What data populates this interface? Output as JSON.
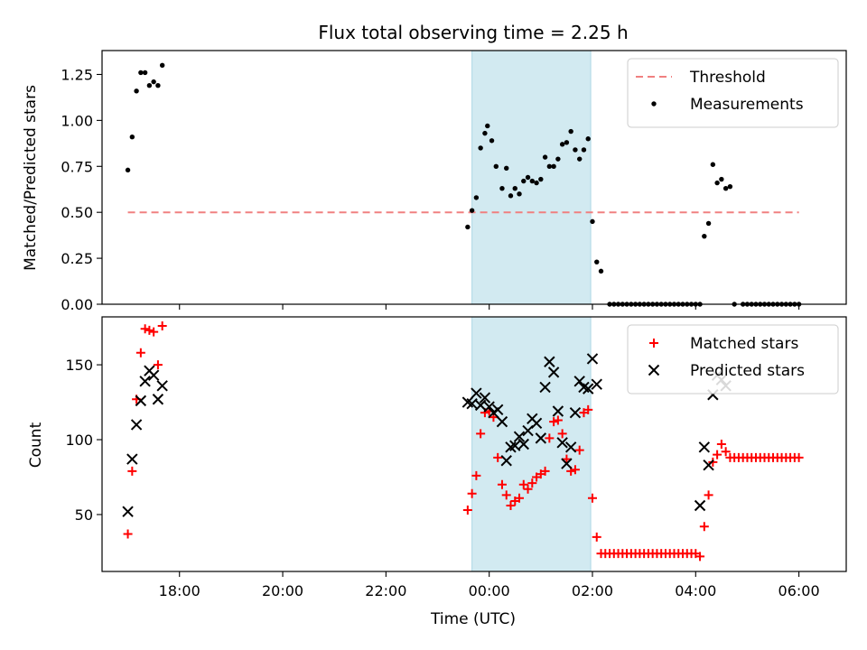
{
  "figure": {
    "title": "Flux total observing time = 2.25 h"
  },
  "colors": {
    "threshold": "#f08080",
    "measurement": "#000000",
    "matched": "#ff0000",
    "predicted": "#000000",
    "highlight": "#add8e6"
  },
  "chart_data": [
    {
      "type": "scatter",
      "name_in_figure": "top",
      "ylabel": "Matched/Predicted stars",
      "xlim": [
        "16:30",
        "06:55"
      ],
      "ylim": [
        0,
        1.38
      ],
      "y_ticks": [
        "0.00",
        "0.25",
        "0.50",
        "0.75",
        "1.00",
        "1.25"
      ],
      "x_tick_labels_visible": false,
      "highlight_span": [
        "23:40",
        "01:58"
      ],
      "legend": {
        "position": "top-right",
        "entries": [
          "Threshold",
          "Measurements"
        ]
      },
      "threshold": {
        "name": "Threshold",
        "y": 0.5,
        "x_range": [
          "17:00",
          "06:00"
        ],
        "style": "dashed"
      },
      "series": [
        {
          "name": "Measurements",
          "marker": "dot",
          "points": [
            [
              "17:00",
              0.73
            ],
            [
              "17:05",
              0.91
            ],
            [
              "17:10",
              1.16
            ],
            [
              "17:15",
              1.26
            ],
            [
              "17:20",
              1.26
            ],
            [
              "17:25",
              1.19
            ],
            [
              "17:30",
              1.21
            ],
            [
              "17:35",
              1.19
            ],
            [
              "17:40",
              1.3
            ],
            [
              "23:35",
              0.42
            ],
            [
              "23:40",
              0.51
            ],
            [
              "23:45",
              0.58
            ],
            [
              "23:50",
              0.85
            ],
            [
              "23:55",
              0.93
            ],
            [
              "23:58",
              0.97
            ],
            [
              "00:03",
              0.89
            ],
            [
              "00:08",
              0.75
            ],
            [
              "00:15",
              0.63
            ],
            [
              "00:20",
              0.74
            ],
            [
              "00:25",
              0.59
            ],
            [
              "00:30",
              0.63
            ],
            [
              "00:35",
              0.6
            ],
            [
              "00:40",
              0.67
            ],
            [
              "00:45",
              0.69
            ],
            [
              "00:50",
              0.67
            ],
            [
              "00:55",
              0.66
            ],
            [
              "01:00",
              0.68
            ],
            [
              "01:05",
              0.8
            ],
            [
              "01:10",
              0.75
            ],
            [
              "01:15",
              0.75
            ],
            [
              "01:20",
              0.79
            ],
            [
              "01:25",
              0.87
            ],
            [
              "01:30",
              0.88
            ],
            [
              "01:35",
              0.94
            ],
            [
              "01:40",
              0.84
            ],
            [
              "01:45",
              0.79
            ],
            [
              "01:50",
              0.84
            ],
            [
              "01:55",
              0.9
            ],
            [
              "02:00",
              0.45
            ],
            [
              "02:05",
              0.23
            ],
            [
              "02:10",
              0.18
            ],
            [
              "02:20",
              0.0
            ],
            [
              "02:25",
              0.0
            ],
            [
              "02:30",
              0.0
            ],
            [
              "02:35",
              0.0
            ],
            [
              "02:40",
              0.0
            ],
            [
              "02:45",
              0.0
            ],
            [
              "02:50",
              0.0
            ],
            [
              "02:55",
              0.0
            ],
            [
              "03:00",
              0.0
            ],
            [
              "03:05",
              0.0
            ],
            [
              "03:10",
              0.0
            ],
            [
              "03:15",
              0.0
            ],
            [
              "03:20",
              0.0
            ],
            [
              "03:25",
              0.0
            ],
            [
              "03:30",
              0.0
            ],
            [
              "03:35",
              0.0
            ],
            [
              "03:40",
              0.0
            ],
            [
              "03:45",
              0.0
            ],
            [
              "03:50",
              0.0
            ],
            [
              "03:55",
              0.0
            ],
            [
              "04:00",
              0.0
            ],
            [
              "04:05",
              0.0
            ],
            [
              "04:10",
              0.37
            ],
            [
              "04:15",
              0.44
            ],
            [
              "04:20",
              0.76
            ],
            [
              "04:25",
              0.66
            ],
            [
              "04:30",
              0.68
            ],
            [
              "04:35",
              0.63
            ],
            [
              "04:40",
              0.64
            ],
            [
              "04:45",
              0.0
            ],
            [
              "04:55",
              0.0
            ],
            [
              "05:00",
              0.0
            ],
            [
              "05:05",
              0.0
            ],
            [
              "05:10",
              0.0
            ],
            [
              "05:15",
              0.0
            ],
            [
              "05:20",
              0.0
            ],
            [
              "05:25",
              0.0
            ],
            [
              "05:30",
              0.0
            ],
            [
              "05:35",
              0.0
            ],
            [
              "05:40",
              0.0
            ],
            [
              "05:45",
              0.0
            ],
            [
              "05:50",
              0.0
            ],
            [
              "05:55",
              0.0
            ],
            [
              "06:00",
              0.0
            ]
          ]
        }
      ]
    },
    {
      "type": "scatter",
      "name_in_figure": "bottom",
      "xlabel": "Time (UTC)",
      "ylabel": "Count",
      "xlim": [
        "16:30",
        "06:55"
      ],
      "ylim": [
        12,
        182
      ],
      "y_ticks": [
        "50",
        "100",
        "150"
      ],
      "x_ticks": [
        "18:00",
        "20:00",
        "22:00",
        "00:00",
        "02:00",
        "04:00",
        "06:00"
      ],
      "highlight_span": [
        "23:40",
        "01:58"
      ],
      "legend": {
        "position": "top-right",
        "entries": [
          "Matched stars",
          "Predicted stars"
        ]
      },
      "series": [
        {
          "name": "Matched stars",
          "marker": "plus",
          "points": [
            [
              "17:00",
              37
            ],
            [
              "17:05",
              79
            ],
            [
              "17:10",
              127
            ],
            [
              "17:15",
              158
            ],
            [
              "17:20",
              174
            ],
            [
              "17:25",
              173
            ],
            [
              "17:30",
              172
            ],
            [
              "17:35",
              150
            ],
            [
              "17:40",
              176
            ],
            [
              "23:35",
              53
            ],
            [
              "23:40",
              64
            ],
            [
              "23:45",
              76
            ],
            [
              "23:50",
              104
            ],
            [
              "23:55",
              118
            ],
            [
              "24:00",
              119
            ],
            [
              "00:05",
              115
            ],
            [
              "00:10",
              88
            ],
            [
              "00:15",
              70
            ],
            [
              "00:20",
              63
            ],
            [
              "00:25",
              56
            ],
            [
              "00:30",
              59
            ],
            [
              "00:35",
              61
            ],
            [
              "00:40",
              70
            ],
            [
              "00:45",
              67
            ],
            [
              "00:50",
              71
            ],
            [
              "00:55",
              75
            ],
            [
              "01:00",
              77
            ],
            [
              "01:05",
              79
            ],
            [
              "01:10",
              101
            ],
            [
              "01:15",
              112
            ],
            [
              "01:20",
              113
            ],
            [
              "01:25",
              104
            ],
            [
              "01:30",
              87
            ],
            [
              "01:35",
              79
            ],
            [
              "01:40",
              80
            ],
            [
              "01:45",
              93
            ],
            [
              "01:50",
              118
            ],
            [
              "01:55",
              120
            ],
            [
              "02:00",
              61
            ],
            [
              "02:05",
              35
            ],
            [
              "02:10",
              24
            ],
            [
              "02:15",
              24
            ],
            [
              "02:20",
              24
            ],
            [
              "02:25",
              24
            ],
            [
              "02:30",
              24
            ],
            [
              "02:35",
              24
            ],
            [
              "02:40",
              24
            ],
            [
              "02:45",
              24
            ],
            [
              "02:50",
              24
            ],
            [
              "02:55",
              24
            ],
            [
              "03:00",
              24
            ],
            [
              "03:05",
              24
            ],
            [
              "03:10",
              24
            ],
            [
              "03:15",
              24
            ],
            [
              "03:20",
              24
            ],
            [
              "03:25",
              24
            ],
            [
              "03:30",
              24
            ],
            [
              "03:35",
              24
            ],
            [
              "03:40",
              24
            ],
            [
              "03:45",
              24
            ],
            [
              "03:50",
              24
            ],
            [
              "03:55",
              24
            ],
            [
              "04:00",
              24
            ],
            [
              "04:05",
              22
            ],
            [
              "04:10",
              42
            ],
            [
              "04:15",
              63
            ],
            [
              "04:20",
              85
            ],
            [
              "04:25",
              90
            ],
            [
              "04:30",
              97
            ],
            [
              "04:35",
              92
            ],
            [
              "04:40",
              88
            ],
            [
              "04:45",
              88
            ],
            [
              "04:50",
              88
            ],
            [
              "04:55",
              88
            ],
            [
              "05:00",
              88
            ],
            [
              "05:05",
              88
            ],
            [
              "05:10",
              88
            ],
            [
              "05:15",
              88
            ],
            [
              "05:20",
              88
            ],
            [
              "05:25",
              88
            ],
            [
              "05:30",
              88
            ],
            [
              "05:35",
              88
            ],
            [
              "05:40",
              88
            ],
            [
              "05:45",
              88
            ],
            [
              "05:50",
              88
            ],
            [
              "05:55",
              88
            ],
            [
              "06:00",
              88
            ]
          ]
        },
        {
          "name": "Predicted stars",
          "marker": "x",
          "points": [
            [
              "17:00",
              52
            ],
            [
              "17:05",
              87
            ],
            [
              "17:10",
              110
            ],
            [
              "17:15",
              126
            ],
            [
              "17:20",
              139
            ],
            [
              "17:25",
              146
            ],
            [
              "17:30",
              143
            ],
            [
              "17:35",
              127
            ],
            [
              "17:40",
              136
            ],
            [
              "23:35",
              125
            ],
            [
              "23:40",
              124
            ],
            [
              "23:45",
              131
            ],
            [
              "23:50",
              123
            ],
            [
              "23:55",
              128
            ],
            [
              "24:00",
              122
            ],
            [
              "00:05",
              118
            ],
            [
              "00:10",
              120
            ],
            [
              "00:15",
              112
            ],
            [
              "00:20",
              86
            ],
            [
              "00:25",
              95
            ],
            [
              "00:30",
              96
            ],
            [
              "00:35",
              102
            ],
            [
              "00:40",
              97
            ],
            [
              "00:45",
              106
            ],
            [
              "00:50",
              114
            ],
            [
              "00:55",
              111
            ],
            [
              "01:00",
              101
            ],
            [
              "01:05",
              135
            ],
            [
              "01:10",
              152
            ],
            [
              "01:15",
              145
            ],
            [
              "01:20",
              119
            ],
            [
              "01:25",
              98
            ],
            [
              "01:30",
              84
            ],
            [
              "01:35",
              95
            ],
            [
              "01:40",
              118
            ],
            [
              "01:45",
              139
            ],
            [
              "01:50",
              135
            ],
            [
              "01:55",
              134
            ],
            [
              "02:00",
              154
            ],
            [
              "02:05",
              137
            ],
            [
              "04:05",
              56
            ],
            [
              "04:10",
              95
            ],
            [
              "04:15",
              83
            ],
            [
              "04:20",
              130
            ],
            [
              "04:25",
              143
            ],
            [
              "04:30",
              140
            ],
            [
              "04:35",
              136
            ]
          ]
        }
      ]
    }
  ]
}
